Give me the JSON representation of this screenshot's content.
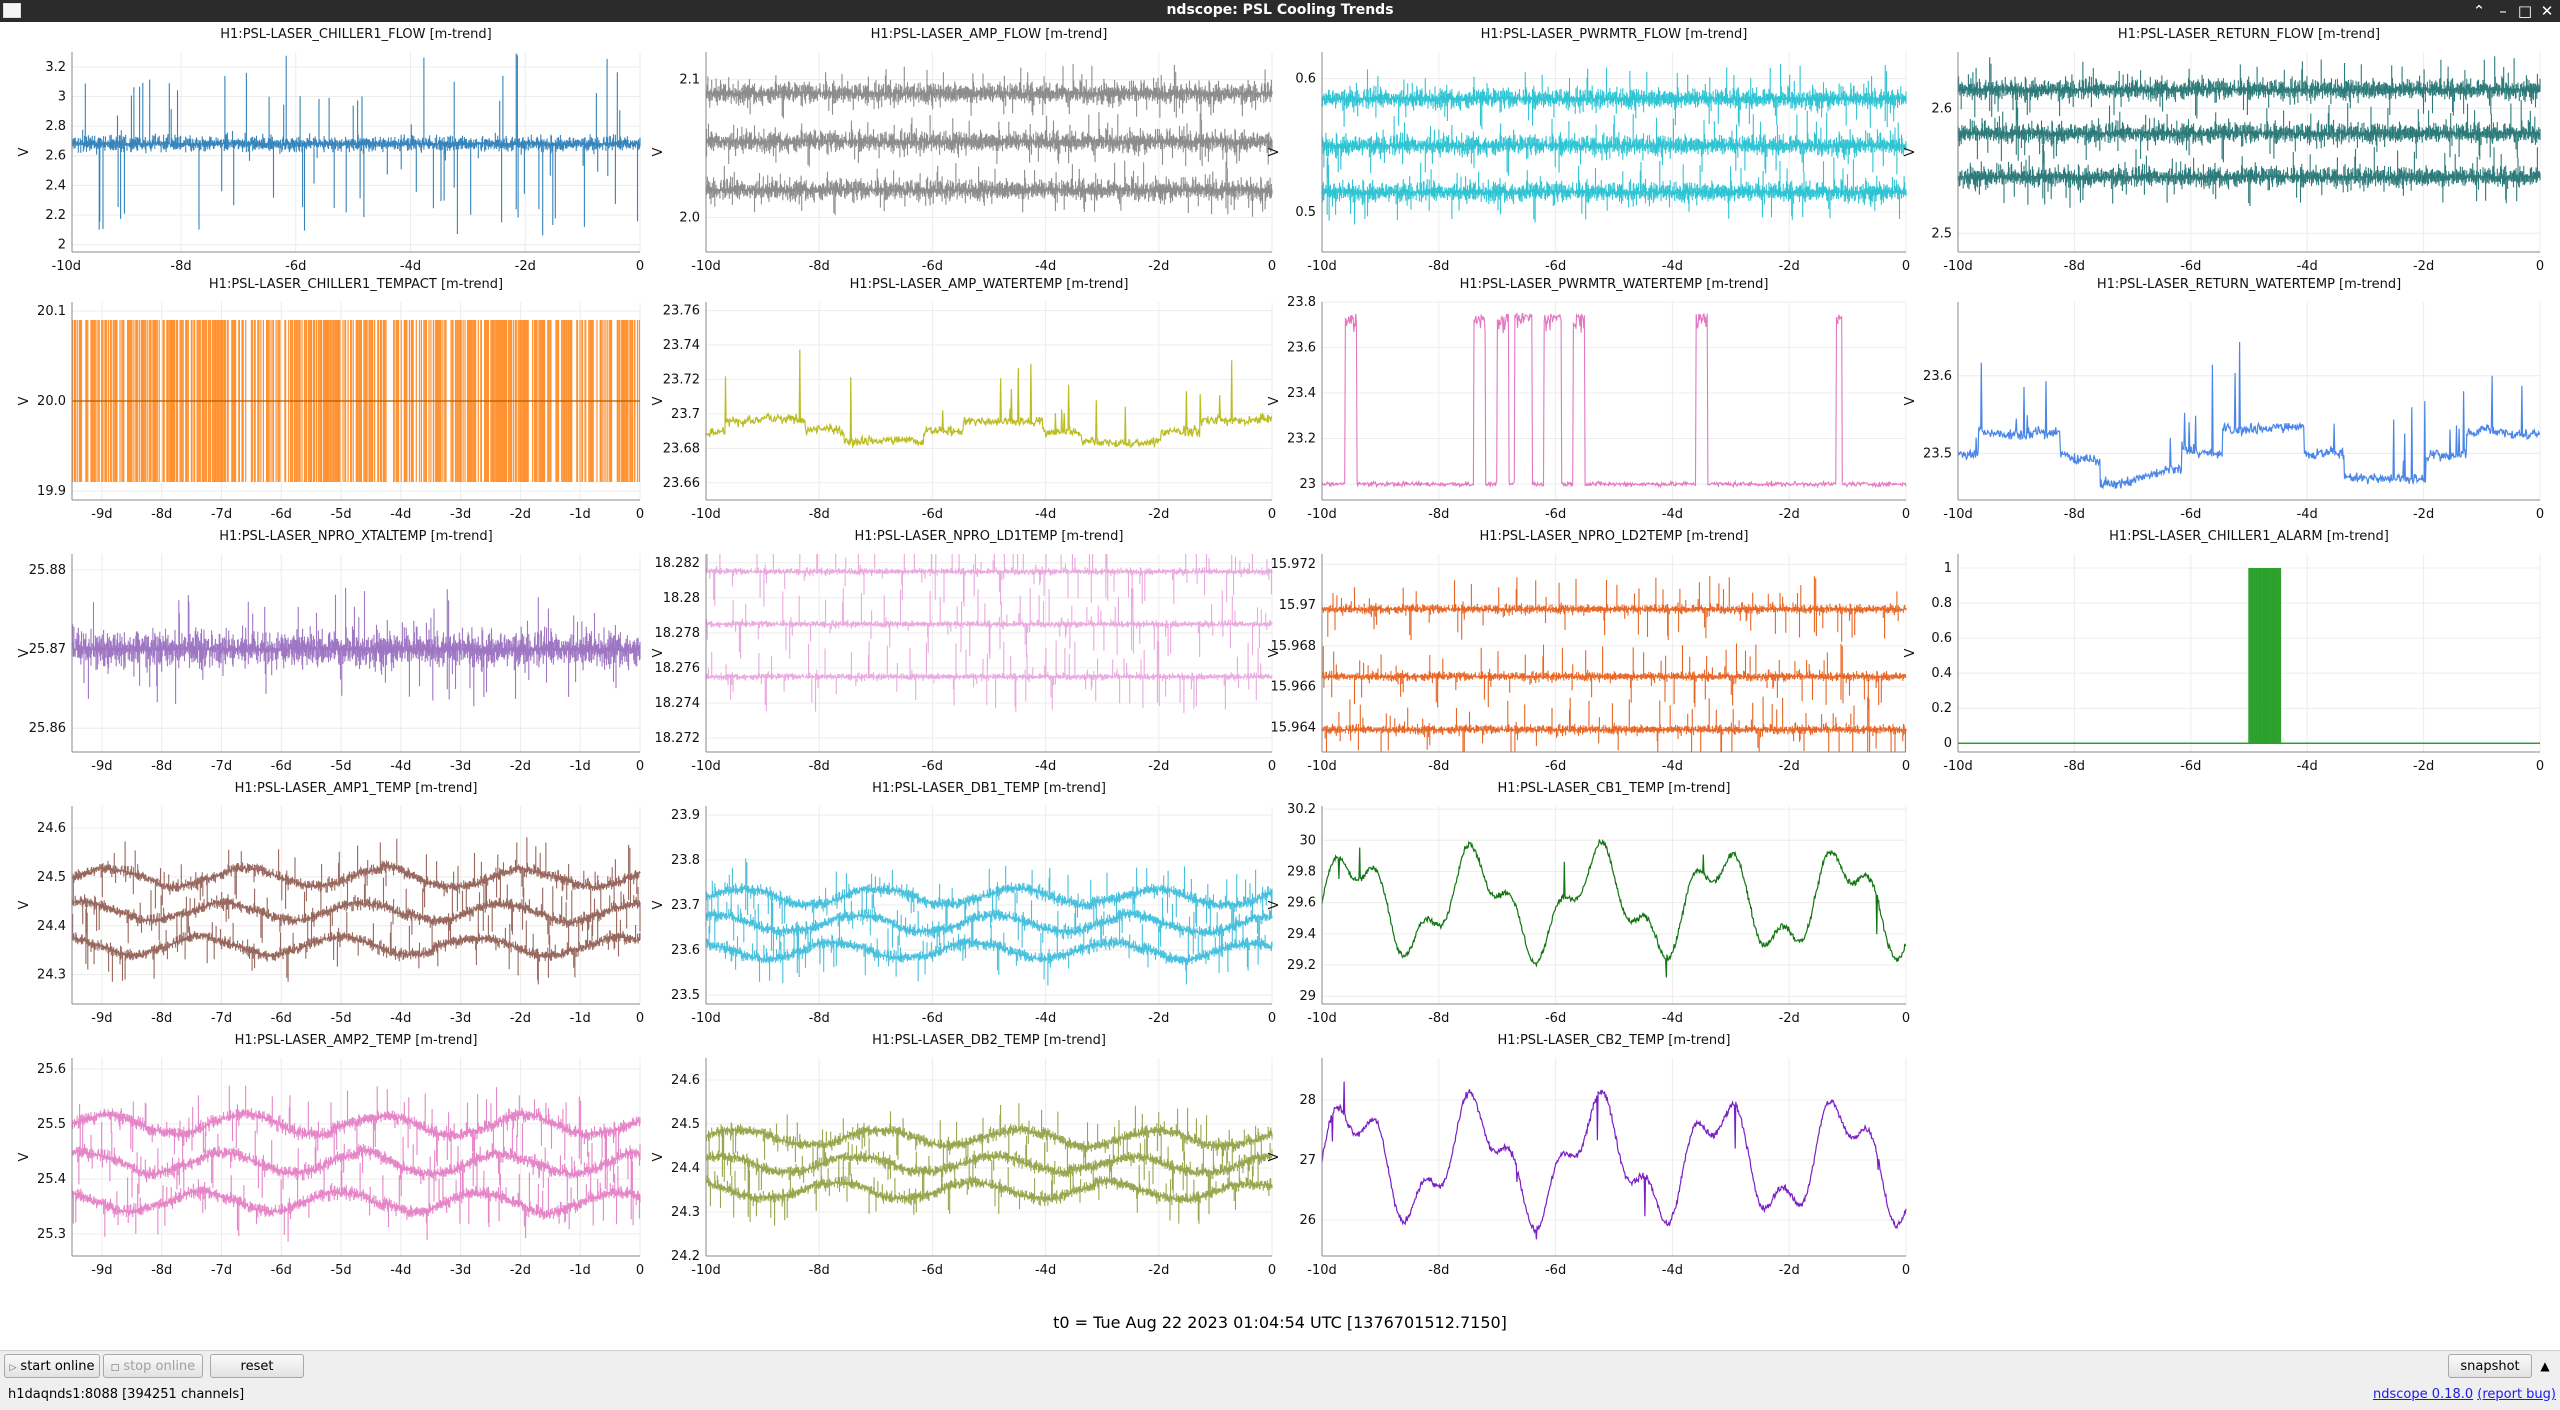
{
  "window": {
    "title": "ndscope: PSL Cooling Trends"
  },
  "t0_label": "t0 = Tue Aug 22 2023 01:04:54 UTC [1376701512.7150]",
  "buttons": {
    "start_online": "start online",
    "stop_online": "stop online",
    "reset": "reset",
    "snapshot": "snapshot"
  },
  "status": {
    "server": "h1daqnds1:8088  [394251 channels]"
  },
  "version": {
    "label": "ndscope 0.18.0",
    "report": "(report bug)"
  },
  "chart_data": [
    {
      "type": "line",
      "title": "H1:PSL-LASER_CHILLER1_FLOW [m-trend]",
      "ylabel": "V",
      "color": "#1f77b4",
      "style": "band",
      "yticks": [
        "2",
        "2.2",
        "2.4",
        "2.6",
        "2.8",
        "3",
        "3.2"
      ],
      "ylim": [
        1.95,
        3.3
      ],
      "xticks": [
        "-10d",
        "-8d",
        "-6d",
        "-4d",
        "-2d",
        "0"
      ],
      "xlim": [
        -9.9,
        0
      ],
      "series_levels": [
        2.68
      ],
      "noise": 0.08,
      "spikes": 0.6
    },
    {
      "type": "line",
      "title": "H1:PSL-LASER_AMP_FLOW [m-trend]",
      "ylabel": "V",
      "color": "#7f7f7f",
      "style": "band",
      "yticks": [
        "2.0",
        "2.1"
      ],
      "ylim": [
        1.975,
        2.12
      ],
      "xticks": [
        "-10d",
        "-8d",
        "-6d",
        "-4d",
        "-2d",
        "0"
      ],
      "xlim": [
        -10,
        0
      ],
      "series_levels": [
        2.09,
        2.055,
        2.02
      ],
      "noise": 0.012,
      "spikes": 0.015
    },
    {
      "type": "line",
      "title": "H1:PSL-LASER_PWRMTR_FLOW [m-trend]",
      "ylabel": "V",
      "color": "#17becf",
      "style": "band",
      "yticks": [
        "0.5",
        "0.6"
      ],
      "ylim": [
        0.47,
        0.62
      ],
      "xticks": [
        "-10d",
        "-8d",
        "-6d",
        "-4d",
        "-2d",
        "0"
      ],
      "xlim": [
        -10,
        0
      ],
      "series_levels": [
        0.585,
        0.55,
        0.515
      ],
      "noise": 0.012,
      "spikes": 0.02
    },
    {
      "type": "line",
      "title": "H1:PSL-LASER_RETURN_FLOW [m-trend]",
      "ylabel": "V",
      "color": "#166b6b",
      "style": "band",
      "yticks": [
        "2.5",
        "2.6"
      ],
      "ylim": [
        2.485,
        2.645
      ],
      "xticks": [
        "-10d",
        "-8d",
        "-6d",
        "-4d",
        "-2d",
        "0"
      ],
      "xlim": [
        -10,
        0
      ],
      "series_levels": [
        2.615,
        2.58,
        2.545
      ],
      "noise": 0.013,
      "spikes": 0.02
    },
    {
      "type": "line",
      "title": "H1:PSL-LASER_CHILLER1_TEMPACT [m-trend]",
      "ylabel": "V",
      "color": "#ff7f0e",
      "style": "square",
      "yticks": [
        "19.9",
        "20.0",
        "20.1"
      ],
      "ylim": [
        19.89,
        20.11
      ],
      "xticks": [
        "-9d",
        "-8d",
        "-7d",
        "-6d",
        "-5d",
        "-4d",
        "-3d",
        "-2d",
        "-1d",
        "0"
      ],
      "xlim": [
        -9.5,
        0
      ],
      "series_levels": [
        20.0
      ],
      "amp": 0.1
    },
    {
      "type": "line",
      "title": "H1:PSL-LASER_AMP_WATERTEMP [m-trend]",
      "ylabel": "V",
      "color": "#bcbd22",
      "style": "drift",
      "yticks": [
        "23.66",
        "23.68",
        "23.7",
        "23.72",
        "23.74",
        "23.76"
      ],
      "ylim": [
        23.65,
        23.765
      ],
      "xticks": [
        "-10d",
        "-8d",
        "-6d",
        "-4d",
        "-2d",
        "0"
      ],
      "xlim": [
        -10,
        0
      ],
      "series_levels": [
        23.69
      ],
      "amp": 0.006,
      "noise": 0.004,
      "spikes": 0.04
    },
    {
      "type": "line",
      "title": "H1:PSL-LASER_PWRMTR_WATERTEMP [m-trend]",
      "ylabel": "V",
      "color": "#e377c2",
      "style": "pulse",
      "yticks": [
        "23",
        "23.2",
        "23.4",
        "23.6",
        "23.8"
      ],
      "ylim": [
        22.93,
        23.8
      ],
      "xticks": [
        "-10d",
        "-8d",
        "-6d",
        "-4d",
        "-2d",
        "0"
      ],
      "xlim": [
        -10,
        0
      ],
      "series_levels": [
        23.0
      ],
      "high": 23.75,
      "noise": 0.015,
      "pulses": [
        [
          -9.6,
          -9.4
        ],
        [
          -7.4,
          -7.2
        ],
        [
          -7.0,
          -6.8
        ],
        [
          -6.7,
          -6.4
        ],
        [
          -6.2,
          -5.9
        ],
        [
          -5.7,
          -5.5
        ],
        [
          -3.6,
          -3.4
        ],
        [
          -1.2,
          -1.1
        ]
      ]
    },
    {
      "type": "line",
      "title": "H1:PSL-LASER_RETURN_WATERTEMP [m-trend]",
      "ylabel": "V",
      "color": "#4a86e8",
      "style": "drift",
      "yticks": [
        "23.5",
        "23.6"
      ],
      "ylim": [
        23.44,
        23.695
      ],
      "xticks": [
        "-10d",
        "-8d",
        "-6d",
        "-4d",
        "-2d",
        "0"
      ],
      "xlim": [
        -10,
        0
      ],
      "series_levels": [
        23.5
      ],
      "amp": 0.03,
      "noise": 0.01,
      "spikes": 0.12
    },
    {
      "type": "line",
      "title": "H1:PSL-LASER_NPRO_XTALTEMP [m-trend]",
      "ylabel": "V",
      "color": "#9467bd",
      "style": "band",
      "yticks": [
        "25.86",
        "25.87",
        "25.88"
      ],
      "ylim": [
        25.857,
        25.882
      ],
      "xticks": [
        "-9d",
        "-8d",
        "-7d",
        "-6d",
        "-5d",
        "-4d",
        "-3d",
        "-2d",
        "-1d",
        "0"
      ],
      "xlim": [
        -9.5,
        0
      ],
      "series_levels": [
        25.87
      ],
      "noise": 0.0035,
      "spikes": 0.006
    },
    {
      "type": "line",
      "title": "H1:PSL-LASER_NPRO_LD1TEMP [m-trend]",
      "ylabel": "V",
      "color": "#e8a0dc",
      "style": "band",
      "yticks": [
        "18.272",
        "18.274",
        "18.276",
        "18.278",
        "18.28",
        "18.282"
      ],
      "ylim": [
        18.2712,
        18.2825
      ],
      "xticks": [
        "-10d",
        "-8d",
        "-6d",
        "-4d",
        "-2d",
        "0"
      ],
      "xlim": [
        -10,
        0
      ],
      "series_levels": [
        18.2815,
        18.2785,
        18.2755
      ],
      "noise": 0.0003,
      "spikes": 0.002
    },
    {
      "type": "line",
      "title": "H1:PSL-LASER_NPRO_LD2TEMP [m-trend]",
      "ylabel": "V",
      "color": "#e6550d",
      "style": "band",
      "yticks": [
        "15.964",
        "15.966",
        "15.968",
        "15.97",
        "15.972"
      ],
      "ylim": [
        15.9628,
        15.9725
      ],
      "xticks": [
        "-10d",
        "-8d",
        "-6d",
        "-4d",
        "-2d",
        "0"
      ],
      "xlim": [
        -10,
        0
      ],
      "series_levels": [
        15.9698,
        15.9665,
        15.9639
      ],
      "noise": 0.00035,
      "spikes": 0.0015
    },
    {
      "type": "line",
      "title": "H1:PSL-LASER_CHILLER1_ALARM [m-trend]",
      "ylabel": "V",
      "color": "#2ca02c",
      "style": "alarm",
      "yticks": [
        "0",
        "0.2",
        "0.4",
        "0.6",
        "0.8",
        "1"
      ],
      "ylim": [
        -0.05,
        1.08
      ],
      "xticks": [
        "-10d",
        "-8d",
        "-6d",
        "-4d",
        "-2d",
        "0"
      ],
      "xlim": [
        -10,
        0
      ],
      "series_levels": [
        0
      ],
      "pulses": [
        [
          -5.0,
          -4.7
        ],
        [
          -4.72,
          -4.45
        ]
      ]
    },
    {
      "type": "line",
      "title": "H1:PSL-LASER_AMP1_TEMP [m-trend]",
      "ylabel": "V",
      "color": "#8c564b",
      "style": "band",
      "yticks": [
        "24.3",
        "24.4",
        "24.5",
        "24.6"
      ],
      "ylim": [
        24.24,
        24.645
      ],
      "xticks": [
        "-9d",
        "-8d",
        "-7d",
        "-6d",
        "-5d",
        "-4d",
        "-3d",
        "-2d",
        "-1d",
        "0"
      ],
      "xlim": [
        -9.5,
        0
      ],
      "series_levels": [
        24.5,
        24.43,
        24.36
      ],
      "noise": 0.018,
      "spikes": 0.06,
      "wander": 0.03
    },
    {
      "type": "line",
      "title": "H1:PSL-LASER_DB1_TEMP [m-trend]",
      "ylabel": "V",
      "color": "#32b9d9",
      "style": "band",
      "yticks": [
        "23.5",
        "23.6",
        "23.7",
        "23.8",
        "23.9"
      ],
      "ylim": [
        23.48,
        23.92
      ],
      "xticks": [
        "-10d",
        "-8d",
        "-6d",
        "-4d",
        "-2d",
        "0"
      ],
      "xlim": [
        -10,
        0
      ],
      "series_levels": [
        23.72,
        23.66,
        23.6
      ],
      "noise": 0.02,
      "spikes": 0.06,
      "wander": 0.03
    },
    {
      "type": "line",
      "title": "H1:PSL-LASER_CB1_TEMP [m-trend]",
      "ylabel": "V",
      "color": "#137513",
      "style": "wave",
      "yticks": [
        "29",
        "29.2",
        "29.4",
        "29.6",
        "29.8",
        "30",
        "30.2"
      ],
      "ylim": [
        28.95,
        30.22
      ],
      "xticks": [
        "-10d",
        "-8d",
        "-6d",
        "-4d",
        "-2d",
        "0"
      ],
      "xlim": [
        -10,
        0
      ],
      "series_levels": [
        29.6
      ],
      "amp": 0.3,
      "noise": 0.03
    },
    {
      "type": "none"
    },
    {
      "type": "line",
      "title": "H1:PSL-LASER_AMP2_TEMP [m-trend]",
      "ylabel": "V",
      "color": "#e377c2",
      "style": "band",
      "yticks": [
        "25.3",
        "25.4",
        "25.5",
        "25.6"
      ],
      "ylim": [
        25.26,
        25.62
      ],
      "xticks": [
        "-9d",
        "-8d",
        "-7d",
        "-6d",
        "-5d",
        "-4d",
        "-3d",
        "-2d",
        "-1d",
        "0"
      ],
      "xlim": [
        -9.5,
        0
      ],
      "series_levels": [
        25.5,
        25.43,
        25.36
      ],
      "noise": 0.018,
      "spikes": 0.06,
      "wander": 0.03
    },
    {
      "type": "line",
      "title": "H1:PSL-LASER_DB2_TEMP [m-trend]",
      "ylabel": "V",
      "color": "#8c9c3a",
      "style": "band",
      "yticks": [
        "24.2",
        "24.3",
        "24.4",
        "24.5",
        "24.6"
      ],
      "ylim": [
        24.2,
        24.65
      ],
      "xticks": [
        "-10d",
        "-8d",
        "-6d",
        "-4d",
        "-2d",
        "0"
      ],
      "xlim": [
        -10,
        0
      ],
      "series_levels": [
        24.47,
        24.41,
        24.35
      ],
      "noise": 0.02,
      "spikes": 0.06,
      "wander": 0.03
    },
    {
      "type": "line",
      "title": "H1:PSL-LASER_CB2_TEMP [m-trend]",
      "ylabel": "V",
      "color": "#7b1fc2",
      "style": "wave",
      "yticks": [
        "26",
        "27",
        "28"
      ],
      "ylim": [
        25.4,
        28.7
      ],
      "xticks": [
        "-10d",
        "-8d",
        "-6d",
        "-4d",
        "-2d",
        "0"
      ],
      "xlim": [
        -10,
        0
      ],
      "series_levels": [
        27.0
      ],
      "amp": 0.9,
      "noise": 0.08
    },
    {
      "type": "none"
    }
  ]
}
